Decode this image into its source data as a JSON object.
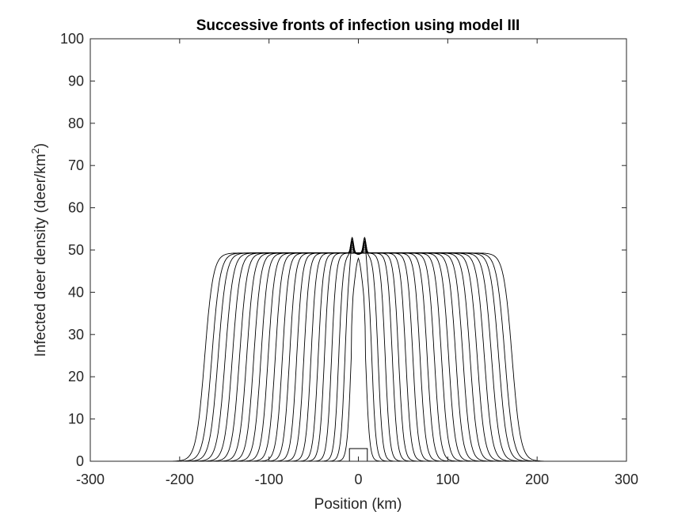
{
  "chart_data": {
    "type": "line",
    "title": "Successive fronts of infection using model III",
    "xlabel": "Position (km)",
    "ylabel": {
      "prefix": "Infected deer density (deer/km",
      "superscript": "2",
      "suffix": ")"
    },
    "xlim": [
      -300,
      300
    ],
    "ylim": [
      0,
      100
    ],
    "x_ticks": [
      "-300",
      "-200",
      "-100",
      "0",
      "100",
      "200",
      "300"
    ],
    "y_ticks": [
      "0",
      "10",
      "20",
      "30",
      "40",
      "50",
      "60",
      "70",
      "80",
      "90",
      "100"
    ],
    "grid": false,
    "legend": "none",
    "line_color": "#000000",
    "initial_condition": {
      "x_start": -10,
      "x_end": 10,
      "height": 3
    },
    "plateau_level": 49.3,
    "central_peak": 54,
    "central_dip": 50,
    "front_halfwidths_km": [
      8,
      15,
      22,
      30,
      38,
      45,
      53,
      61,
      69,
      77,
      85,
      93,
      101,
      109,
      117,
      125,
      133,
      141,
      149,
      157,
      164,
      172
    ],
    "front_outer_positions_km": [
      182,
      198,
      214,
      243
    ]
  }
}
